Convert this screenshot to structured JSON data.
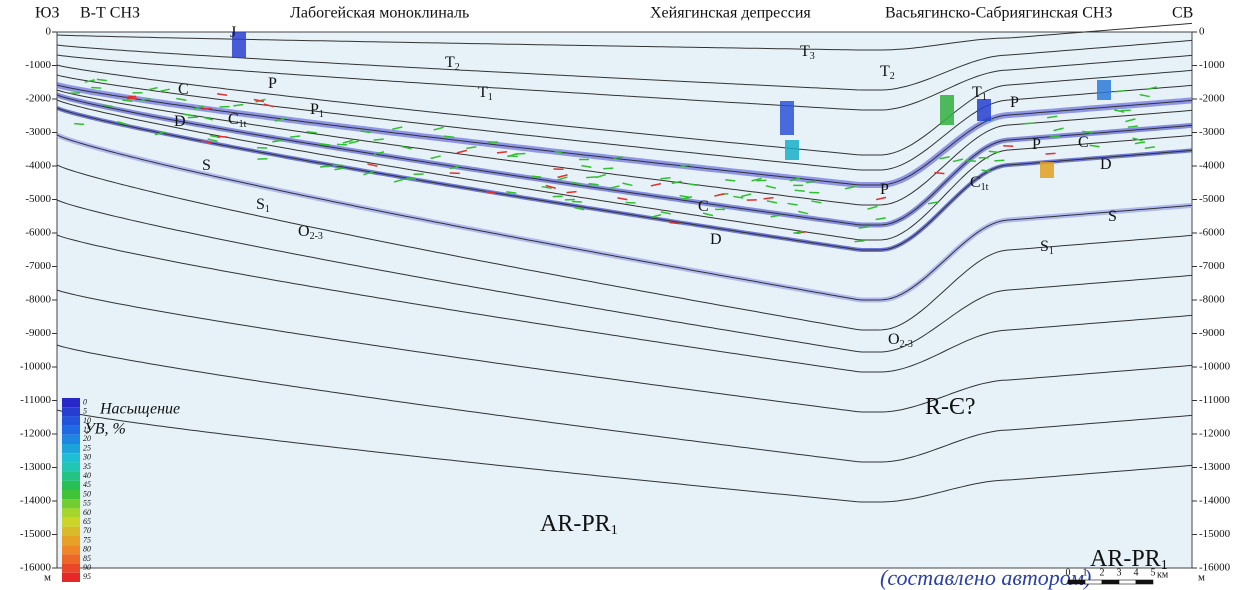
{
  "header": {
    "sw": "ЮЗ",
    "zone_left": "В-Т СНЗ",
    "monocline": "Лабогейская моноклиналь",
    "depression": "Хейягинская депрессия",
    "zone_right": "Васьягинско-Сабриягинская СНЗ",
    "ne": "СВ"
  },
  "depth_axis": {
    "ticks": [
      0,
      -1000,
      -2000,
      -3000,
      -4000,
      -5000,
      -6000,
      -7000,
      -8000,
      -9000,
      -10000,
      -11000,
      -12000,
      -13000,
      -14000,
      -15000,
      -16000
    ],
    "unit": "м"
  },
  "formations": [
    {
      "text": "J"
    },
    {
      "text": "T",
      "sub": "3"
    },
    {
      "text": "T",
      "sub": "2"
    },
    {
      "text": "T",
      "sub": "2"
    },
    {
      "text": "T",
      "sub": "1"
    },
    {
      "text": "T",
      "sub": "1"
    },
    {
      "text": "P"
    },
    {
      "text": "P",
      "sub": "1"
    },
    {
      "text": "P"
    },
    {
      "text": "P"
    },
    {
      "text": "P"
    },
    {
      "text": "C"
    },
    {
      "text": "C"
    },
    {
      "text": "C"
    },
    {
      "text": "D"
    },
    {
      "text": "D"
    },
    {
      "text": "D"
    },
    {
      "text": "C",
      "sub": "1t"
    },
    {
      "text": "C",
      "sub": "1t"
    },
    {
      "text": "S"
    },
    {
      "text": "S"
    },
    {
      "text": "S",
      "sub": "1"
    },
    {
      "text": "S",
      "sub": "1"
    },
    {
      "text": "O",
      "sub": "2-3"
    },
    {
      "text": "O",
      "sub": "2-3"
    },
    {
      "text": "R-Є?"
    },
    {
      "text": "AR-PR",
      "sub": "1"
    },
    {
      "text": "AR-PR",
      "sub": "1"
    }
  ],
  "legend": {
    "title": [
      "Насыщение",
      "УВ, %"
    ],
    "values": [
      0,
      5,
      10,
      15,
      20,
      25,
      30,
      35,
      40,
      45,
      50,
      55,
      60,
      65,
      70,
      75,
      80,
      85,
      90,
      95
    ]
  },
  "scale_bar": {
    "labels": [
      0,
      1,
      2,
      3,
      4,
      5
    ],
    "unit": "км"
  },
  "caption": "(составлено автором)"
}
